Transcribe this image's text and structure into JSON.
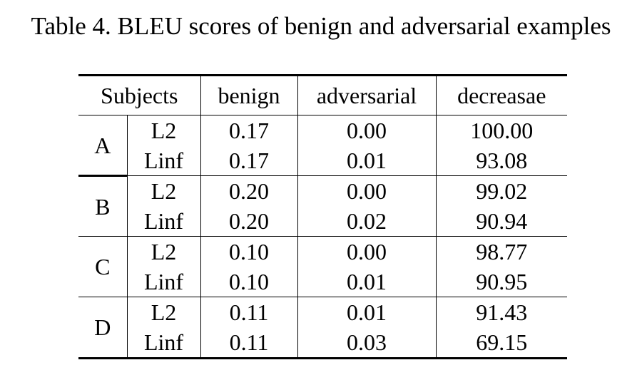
{
  "caption": "Table 4. BLEU scores of benign and adversarial examples",
  "columns": {
    "subjects": "Subjects",
    "benign": "benign",
    "adversarial": "adversarial",
    "decrease": "decreasae"
  },
  "groups": [
    {
      "subject": "A",
      "rows": [
        {
          "norm": "L2",
          "benign": "0.17",
          "adversarial": "0.00",
          "decrease": "100.00"
        },
        {
          "norm": "Linf",
          "benign": "0.17",
          "adversarial": "0.01",
          "decrease": "93.08"
        }
      ]
    },
    {
      "subject": "B",
      "rows": [
        {
          "norm": "L2",
          "benign": "0.20",
          "adversarial": "0.00",
          "decrease": "99.02"
        },
        {
          "norm": "Linf",
          "benign": "0.20",
          "adversarial": "0.02",
          "decrease": "90.94"
        }
      ]
    },
    {
      "subject": "C",
      "rows": [
        {
          "norm": "L2",
          "benign": "0.10",
          "adversarial": "0.00",
          "decrease": "98.77"
        },
        {
          "norm": "Linf",
          "benign": "0.10",
          "adversarial": "0.01",
          "decrease": "90.95"
        }
      ]
    },
    {
      "subject": "D",
      "rows": [
        {
          "norm": "L2",
          "benign": "0.11",
          "adversarial": "0.01",
          "decrease": "91.43"
        },
        {
          "norm": "Linf",
          "benign": "0.11",
          "adversarial": "0.03",
          "decrease": "69.15"
        }
      ]
    }
  ]
}
